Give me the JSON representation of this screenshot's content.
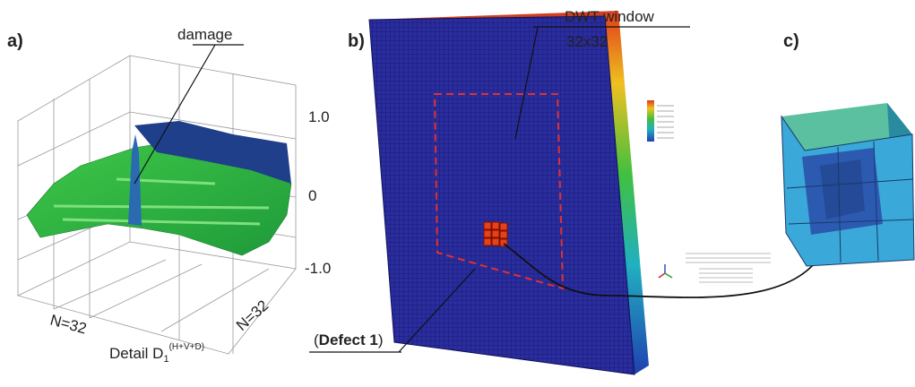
{
  "panel_a": {
    "label": "a)",
    "annotation": "damage",
    "z_ticks": [
      "1.0",
      "0",
      "-1.0"
    ],
    "x_axis_label": "N=32",
    "y_axis_label": "N=32",
    "caption": {
      "text": "Detail D",
      "subscript": "1",
      "superscript": "(H+V+D)"
    }
  },
  "panel_b": {
    "label": "b)",
    "window_label": "DWT window",
    "window_size": "32x32",
    "defect_open": "(",
    "defect_name": "Defect 1",
    "defect_close": ")"
  },
  "panel_c": {
    "label": "c)"
  }
}
